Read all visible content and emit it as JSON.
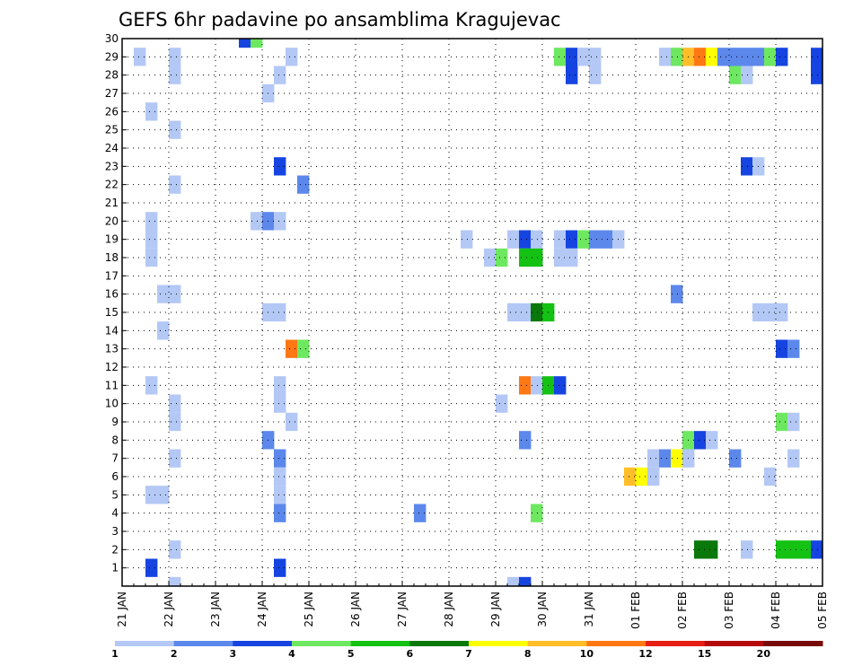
{
  "chart_data": {
    "type": "heatmap",
    "title": "GEFS 6hr padavine po ansamblima Kragujevac",
    "xlabel": "",
    "ylabel": "",
    "grid": true,
    "x_ticks": [
      "21 JAN",
      "22 JAN",
      "23 JAN",
      "24 JAN",
      "25 JAN",
      "26 JAN",
      "27 JAN",
      "28 JAN",
      "29 JAN",
      "30 JAN",
      "31 JAN",
      "01 FEB",
      "02 FEB",
      "03 FEB",
      "04 FEB",
      "05 FEB"
    ],
    "x_range_days": [
      0,
      15
    ],
    "y_ticks": [
      1,
      2,
      3,
      4,
      5,
      6,
      7,
      8,
      9,
      10,
      11,
      12,
      13,
      14,
      15,
      16,
      17,
      18,
      19,
      20,
      21,
      22,
      23,
      24,
      25,
      26,
      27,
      28,
      29,
      30
    ],
    "y_range": [
      0,
      30
    ],
    "legend": {
      "placement": "bottom",
      "labels": [
        "1",
        "2",
        "3",
        "4",
        "5",
        "6",
        "7",
        "8",
        "10",
        "12",
        "15",
        "20"
      ],
      "colors": [
        "#b4c8f5",
        "#5c88ec",
        "#1644e0",
        "#6ee860",
        "#14c214",
        "#0a780a",
        "#ffff00",
        "#ffbe28",
        "#ff7814",
        "#e61e14",
        "#b40a0a",
        "#780a0a"
      ]
    },
    "cells": [
      [
        2.5,
        30,
        3
      ],
      [
        2.75,
        30,
        4
      ],
      [
        0.25,
        29,
        1
      ],
      [
        1,
        29,
        1
      ],
      [
        3.5,
        29,
        1
      ],
      [
        9.25,
        29,
        4
      ],
      [
        9.5,
        29,
        3
      ],
      [
        9.75,
        29,
        1
      ],
      [
        10,
        29,
        1
      ],
      [
        11.5,
        29,
        1
      ],
      [
        11.75,
        29,
        4
      ],
      [
        12,
        29,
        8
      ],
      [
        12.25,
        29,
        9
      ],
      [
        12.5,
        29,
        7
      ],
      [
        12.75,
        29,
        2
      ],
      [
        13,
        29,
        2
      ],
      [
        13.25,
        29,
        2
      ],
      [
        13.5,
        29,
        2
      ],
      [
        13.75,
        29,
        4
      ],
      [
        14,
        29,
        3
      ],
      [
        14.75,
        29,
        3
      ],
      [
        1,
        28,
        1
      ],
      [
        3.25,
        28,
        1
      ],
      [
        9.5,
        28,
        3
      ],
      [
        10,
        28,
        1
      ],
      [
        13,
        28,
        4
      ],
      [
        13.25,
        28,
        1
      ],
      [
        14.75,
        28,
        3
      ],
      [
        3,
        27,
        1
      ],
      [
        0.5,
        26,
        1
      ],
      [
        1,
        25,
        1
      ],
      [
        3.25,
        23,
        3
      ],
      [
        13.25,
        23,
        3
      ],
      [
        13.5,
        23,
        1
      ],
      [
        1,
        22,
        1
      ],
      [
        3.75,
        22,
        2
      ],
      [
        0.5,
        20,
        1
      ],
      [
        2.75,
        20,
        1
      ],
      [
        3,
        20,
        2
      ],
      [
        3.25,
        20,
        1
      ],
      [
        0.5,
        19,
        1
      ],
      [
        7.25,
        19,
        1
      ],
      [
        8.25,
        19,
        1
      ],
      [
        8.5,
        19,
        3
      ],
      [
        8.75,
        19,
        1
      ],
      [
        9.25,
        19,
        1
      ],
      [
        9.5,
        19,
        3
      ],
      [
        9.75,
        19,
        4
      ],
      [
        10,
        19,
        2
      ],
      [
        10.25,
        19,
        2
      ],
      [
        10.5,
        19,
        1
      ],
      [
        0.5,
        18,
        1
      ],
      [
        7.75,
        18,
        1
      ],
      [
        8,
        18,
        4
      ],
      [
        8.5,
        18,
        5
      ],
      [
        8.75,
        18,
        5
      ],
      [
        9.25,
        18,
        1
      ],
      [
        9.5,
        18,
        1
      ],
      [
        0.75,
        16,
        1
      ],
      [
        1,
        16,
        1
      ],
      [
        11.75,
        16,
        2
      ],
      [
        3,
        15,
        1
      ],
      [
        3.25,
        15,
        1
      ],
      [
        8.25,
        15,
        1
      ],
      [
        8.5,
        15,
        1
      ],
      [
        8.75,
        15,
        6
      ],
      [
        9,
        15,
        5
      ],
      [
        13.5,
        15,
        1
      ],
      [
        13.75,
        15,
        1
      ],
      [
        14,
        15,
        1
      ],
      [
        0.75,
        14,
        1
      ],
      [
        3.5,
        13,
        9
      ],
      [
        3.75,
        13,
        4
      ],
      [
        14,
        13,
        3
      ],
      [
        14.25,
        13,
        2
      ],
      [
        0.5,
        11,
        1
      ],
      [
        3.25,
        11,
        1
      ],
      [
        8.5,
        11,
        9
      ],
      [
        8.75,
        11,
        1
      ],
      [
        9,
        11,
        5
      ],
      [
        9.25,
        11,
        3
      ],
      [
        1,
        10,
        1
      ],
      [
        3.25,
        10,
        1
      ],
      [
        8,
        10,
        1
      ],
      [
        1,
        9,
        1
      ],
      [
        3.5,
        9,
        1
      ],
      [
        14,
        9,
        4
      ],
      [
        14.25,
        9,
        1
      ],
      [
        3,
        8,
        2
      ],
      [
        8.5,
        8,
        2
      ],
      [
        12,
        8,
        4
      ],
      [
        12.25,
        8,
        3
      ],
      [
        12.5,
        8,
        1
      ],
      [
        1,
        7,
        1
      ],
      [
        3.25,
        7,
        2
      ],
      [
        11.25,
        7,
        1
      ],
      [
        11.5,
        7,
        2
      ],
      [
        11.75,
        7,
        7
      ],
      [
        12,
        7,
        1
      ],
      [
        13,
        7,
        2
      ],
      [
        14.25,
        7,
        1
      ],
      [
        3.25,
        6,
        1
      ],
      [
        10.75,
        6,
        8
      ],
      [
        11,
        6,
        7
      ],
      [
        11.25,
        6,
        1
      ],
      [
        13.75,
        6,
        1
      ],
      [
        0.5,
        5,
        1
      ],
      [
        0.75,
        5,
        1
      ],
      [
        3.25,
        5,
        1
      ],
      [
        3.25,
        4,
        2
      ],
      [
        6.25,
        4,
        2
      ],
      [
        8.75,
        4,
        4
      ],
      [
        1,
        2,
        1
      ],
      [
        12.25,
        2,
        6
      ],
      [
        12.5,
        2,
        6
      ],
      [
        13.25,
        2,
        1
      ],
      [
        14,
        2,
        5
      ],
      [
        14.25,
        2,
        5
      ],
      [
        14.5,
        2,
        5
      ],
      [
        14.75,
        2,
        3
      ],
      [
        0.5,
        1,
        3
      ],
      [
        3.25,
        1,
        3
      ],
      [
        1,
        0,
        1
      ],
      [
        8.25,
        0,
        1
      ],
      [
        8.5,
        0,
        3
      ]
    ]
  }
}
